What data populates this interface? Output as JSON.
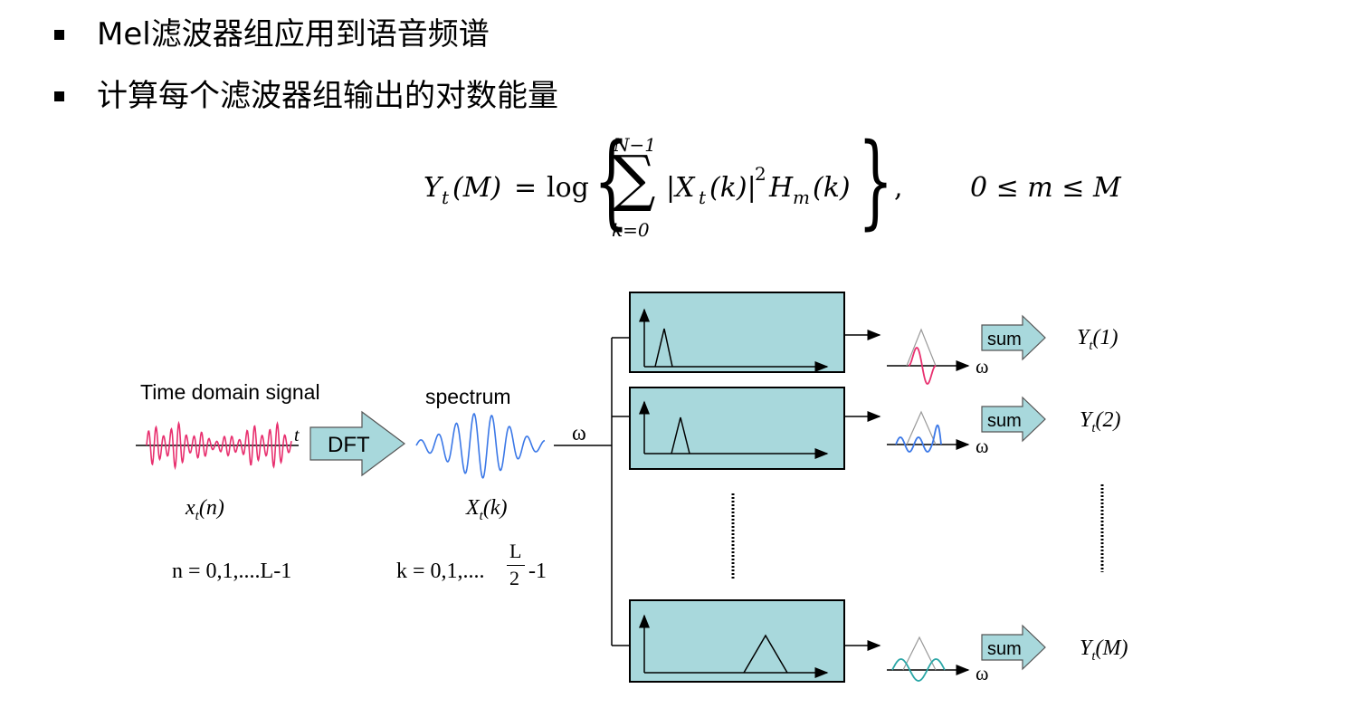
{
  "bullets": [
    "Mel滤波器组应用到语音频谱",
    "计算每个滤波器组输出的对数能量"
  ],
  "formula": {
    "lhs_var": "Y",
    "lhs_sub": "t",
    "lhs_arg": "(M)",
    "eq": "=",
    "log": "log",
    "sum_upper": "N−1",
    "sum_lower": "k=0",
    "term_1": "|X",
    "term_1_sub": "t",
    "term_2": "(k)|",
    "term_2_sup": "2",
    "term_3": "H",
    "term_3_sub": "m",
    "term_4": "(k)",
    "comma": ",",
    "range": "0 ≤ m ≤ M"
  },
  "diagram": {
    "time_domain_label": "Time domain signal",
    "time_axis_label": "t",
    "dft_label": "DFT",
    "spectrum_label": "spectrum",
    "omega_label": "ω",
    "x_n_var": "x",
    "x_n_sub": "t",
    "x_n_arg": "(n)",
    "X_k_var": "X",
    "X_k_sub": "t",
    "X_k_arg": "(k)",
    "n_range": "n = 0,1,....L-1",
    "k_range_prefix": "k = 0,1,....",
    "k_range_num": "L",
    "k_range_den": "2",
    "k_range_suffix": "-1",
    "sum_label": "sum",
    "outputs": [
      {
        "var": "Y",
        "sub": "t",
        "arg": "(1)"
      },
      {
        "var": "Y",
        "sub": "t",
        "arg": "(2)"
      },
      {
        "var": "Y",
        "sub": "t",
        "arg": "(M)"
      }
    ],
    "colors": {
      "filter_box": "#a8d8dc",
      "arrow_fill": "#a8d8dc",
      "time_signal": "#e8306f",
      "spectrum": "#3b78e7",
      "output_1": "#e8306f",
      "output_2": "#3b78e7",
      "output_M": "#2aa6a6"
    }
  }
}
